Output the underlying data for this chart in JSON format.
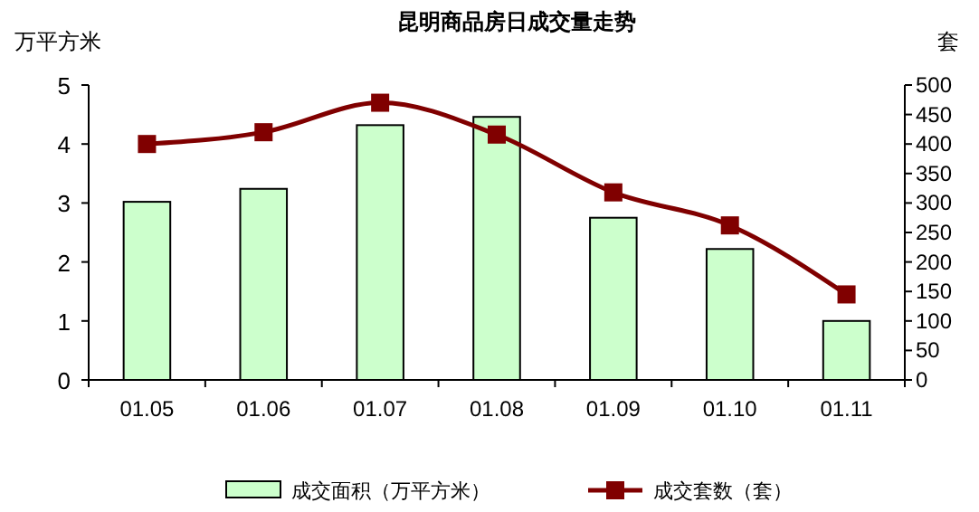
{
  "chart_data": {
    "type": "bar",
    "title": "昆明商品房日成交量走势",
    "ylabel": "万平方米",
    "y2label": "套",
    "categories": [
      "01.05",
      "01.06",
      "01.07",
      "01.08",
      "01.09",
      "01.10",
      "01.11"
    ],
    "series": [
      {
        "name": "成交面积（万平方米）",
        "color": "#ccffcc",
        "values": [
          3.02,
          3.24,
          4.32,
          4.46,
          2.75,
          2.22,
          1.0
        ]
      },
      {
        "name": "成交套数（套）",
        "type": "line",
        "axis": "y2",
        "color": "#800000",
        "marker": "square",
        "values": [
          400,
          420,
          470,
          416,
          318,
          262,
          145
        ]
      }
    ],
    "ylim": [
      0,
      5
    ],
    "yticks": [
      0,
      1,
      2,
      3,
      4,
      5
    ],
    "y2lim": [
      0,
      500
    ],
    "y2ticks": [
      0,
      50,
      100,
      150,
      200,
      250,
      300,
      350,
      400,
      450,
      500
    ],
    "legend": "bottom",
    "grid": false
  }
}
